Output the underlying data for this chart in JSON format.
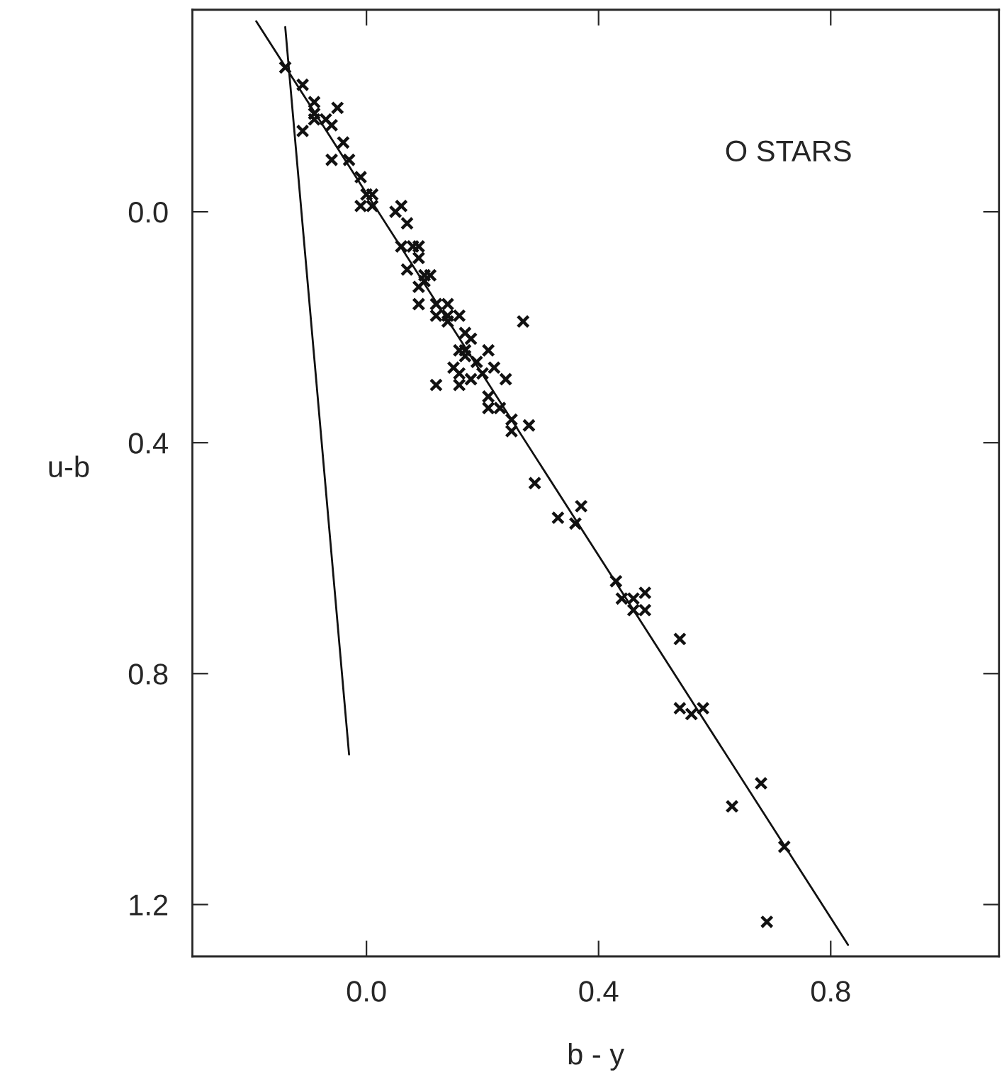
{
  "chart_data": {
    "type": "scatter",
    "xlabel": "b - y",
    "ylabel": "u-b",
    "annotations": [
      "O STARS"
    ],
    "xlim": [
      -0.3,
      1.09
    ],
    "ylim": [
      1.29,
      -0.35
    ],
    "xticks": [
      {
        "value": 0.0,
        "label": "0.0"
      },
      {
        "value": 0.4,
        "label": "0.4"
      },
      {
        "value": 0.8,
        "label": "0.8"
      }
    ],
    "yticks": [
      {
        "value": 0.0,
        "label": "0.0"
      },
      {
        "value": 0.4,
        "label": "0.4"
      },
      {
        "value": 0.8,
        "label": "0.8"
      },
      {
        "value": 1.2,
        "label": "1.2"
      }
    ],
    "grid": false,
    "series": [
      {
        "marker": "cross",
        "color": "#111111",
        "x": [
          -0.14,
          -0.11,
          -0.09,
          -0.05,
          -0.09,
          -0.09,
          -0.07,
          -0.06,
          -0.11,
          -0.04,
          -0.06,
          -0.03,
          -0.01,
          0.0,
          0.01,
          -0.01,
          0.01,
          0.05,
          0.06,
          0.07,
          0.06,
          0.08,
          0.09,
          0.09,
          0.07,
          0.1,
          0.11,
          0.1,
          0.09,
          0.09,
          0.12,
          0.14,
          0.12,
          0.14,
          0.16,
          0.14,
          0.27,
          0.17,
          0.18,
          0.16,
          0.17,
          0.21,
          0.17,
          0.19,
          0.15,
          0.16,
          0.18,
          0.2,
          0.22,
          0.24,
          0.12,
          0.16,
          0.21,
          0.21,
          0.23,
          0.25,
          0.25,
          0.28,
          0.29,
          0.33,
          0.37,
          0.36,
          0.43,
          0.44,
          0.46,
          0.48,
          0.46,
          0.48,
          0.54,
          0.54,
          0.56,
          0.58,
          0.68,
          0.63,
          0.72,
          0.69
        ],
        "values": [
          -0.25,
          -0.22,
          -0.19,
          -0.18,
          -0.17,
          -0.16,
          -0.16,
          -0.15,
          -0.14,
          -0.12,
          -0.09,
          -0.09,
          -0.06,
          -0.03,
          -0.03,
          -0.01,
          -0.01,
          0.0,
          -0.01,
          0.02,
          0.06,
          0.06,
          0.06,
          0.08,
          0.1,
          0.11,
          0.11,
          0.12,
          0.13,
          0.16,
          0.16,
          0.16,
          0.18,
          0.18,
          0.18,
          0.19,
          0.19,
          0.21,
          0.22,
          0.24,
          0.24,
          0.24,
          0.25,
          0.26,
          0.27,
          0.28,
          0.29,
          0.28,
          0.27,
          0.29,
          0.3,
          0.3,
          0.32,
          0.34,
          0.34,
          0.36,
          0.38,
          0.37,
          0.47,
          0.53,
          0.51,
          0.54,
          0.64,
          0.67,
          0.67,
          0.66,
          0.69,
          0.69,
          0.74,
          0.86,
          0.87,
          0.86,
          0.99,
          1.03,
          1.1,
          1.23
        ]
      },
      {
        "type": "line",
        "color": "#111111",
        "line_style": "solid",
        "x": [
          -0.19,
          0.83
        ],
        "values": [
          -0.33,
          1.27
        ]
      },
      {
        "type": "line",
        "color": "#111111",
        "line_style": "solid",
        "x": [
          -0.14,
          -0.03
        ],
        "values": [
          -0.32,
          0.94
        ]
      }
    ]
  }
}
